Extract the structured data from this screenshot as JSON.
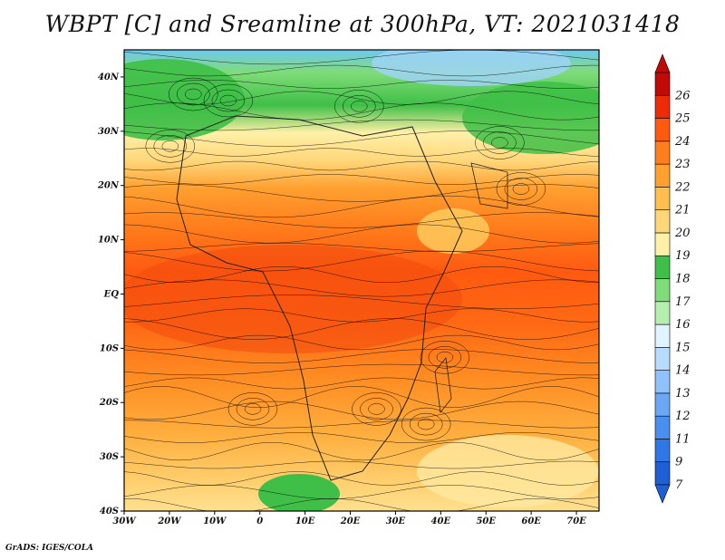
{
  "title": "WBPT [C] and Sreamline at 300hPa, VT: 2021031418",
  "footer": "GrADS: IGES/COLA",
  "map": {
    "lon_ticks": [
      "30W",
      "20W",
      "10W",
      "0",
      "10E",
      "20E",
      "30E",
      "40E",
      "50E",
      "60E",
      "70E"
    ],
    "lat_ticks": [
      "40N",
      "30N",
      "20N",
      "10N",
      "EQ",
      "10S",
      "20S",
      "30S",
      "40S"
    ],
    "lon_range": [
      -30,
      75
    ],
    "lat_range": [
      -40,
      45
    ]
  },
  "colorbar": {
    "labels": [
      "7",
      "9",
      "11",
      "12",
      "13",
      "14",
      "15",
      "16",
      "17",
      "18",
      "19",
      "20",
      "21",
      "22",
      "23",
      "24",
      "25",
      "26"
    ],
    "colors": [
      "#1f5fd6",
      "#2f77e6",
      "#4a8ff0",
      "#6aa8f5",
      "#8fc2fa",
      "#b7dcfd",
      "#dff4ff",
      "#b4efb0",
      "#7fdc78",
      "#3fbf47",
      "#fff0a8",
      "#ffd77a",
      "#ffbf4f",
      "#ffa030",
      "#ff7f1c",
      "#ff5a10",
      "#ee2a08",
      "#c10a05"
    ]
  },
  "colors": {
    "ocean_land_bg": "#ff8a2a",
    "streamline": "#000000"
  }
}
